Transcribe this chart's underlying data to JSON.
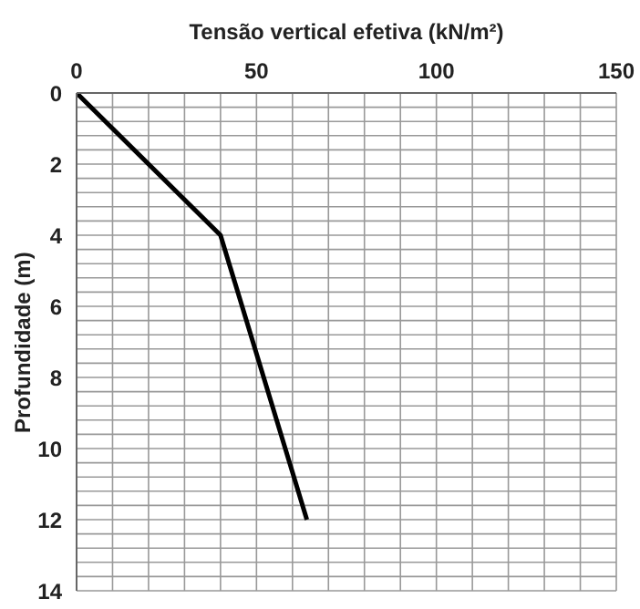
{
  "chart_data": {
    "type": "line",
    "xlabel": "Tensão vertical efetiva (kN/m²)",
    "ylabel": "Profundidade (m)",
    "x": [
      0,
      40,
      64
    ],
    "series": [
      {
        "color": "#000000",
        "values": [
          0,
          4,
          12
        ]
      }
    ],
    "xlim": [
      0,
      150
    ],
    "xticks": [
      0,
      {
        "value": 10,
        "label": null
      },
      {
        "value": 20,
        "label": null
      },
      {
        "value": 30,
        "label": null
      },
      {
        "value": 40,
        "label": null
      },
      50,
      {
        "value": 60,
        "label": null
      },
      {
        "value": 70,
        "label": null
      },
      {
        "value": 80,
        "label": null
      },
      {
        "value": 90,
        "label": null
      },
      100,
      {
        "value": 110,
        "label": null
      },
      {
        "value": 120,
        "label": null
      },
      {
        "value": 130,
        "label": null
      },
      {
        "value": 140,
        "label": null
      },
      150
    ],
    "ylim": [
      14,
      0
    ],
    "yticks": [
      0,
      {
        "value": 0.4,
        "label": null
      },
      {
        "value": 0.8,
        "label": null
      },
      {
        "value": 1.2,
        "label": null
      },
      {
        "value": 1.6,
        "label": null
      },
      2,
      {
        "value": 2.4,
        "label": null
      },
      {
        "value": 2.8,
        "label": null
      },
      {
        "value": 3.2,
        "label": null
      },
      {
        "value": 3.6,
        "label": null
      },
      4,
      {
        "value": 4.4,
        "label": null
      },
      {
        "value": 4.8,
        "label": null
      },
      {
        "value": 5.2,
        "label": null
      },
      {
        "value": 5.6,
        "label": null
      },
      6,
      {
        "value": 6.4,
        "label": null
      },
      {
        "value": 6.8,
        "label": null
      },
      {
        "value": 7.2,
        "label": null
      },
      {
        "value": 7.6,
        "label": null
      },
      8,
      {
        "value": 8.4,
        "label": null
      },
      {
        "value": 8.8,
        "label": null
      },
      {
        "value": 9.2,
        "label": null
      },
      {
        "value": 9.6,
        "label": null
      },
      10,
      {
        "value": 10.4,
        "label": null
      },
      {
        "value": 10.8,
        "label": null
      },
      {
        "value": 11.2,
        "label": null
      },
      {
        "value": 11.6,
        "label": null
      },
      12,
      {
        "value": 12.4,
        "label": null
      },
      {
        "value": 12.8,
        "label": null
      },
      {
        "value": 13.2,
        "label": null
      },
      {
        "value": 13.6,
        "label": null
      },
      14
    ],
    "grid": true
  }
}
